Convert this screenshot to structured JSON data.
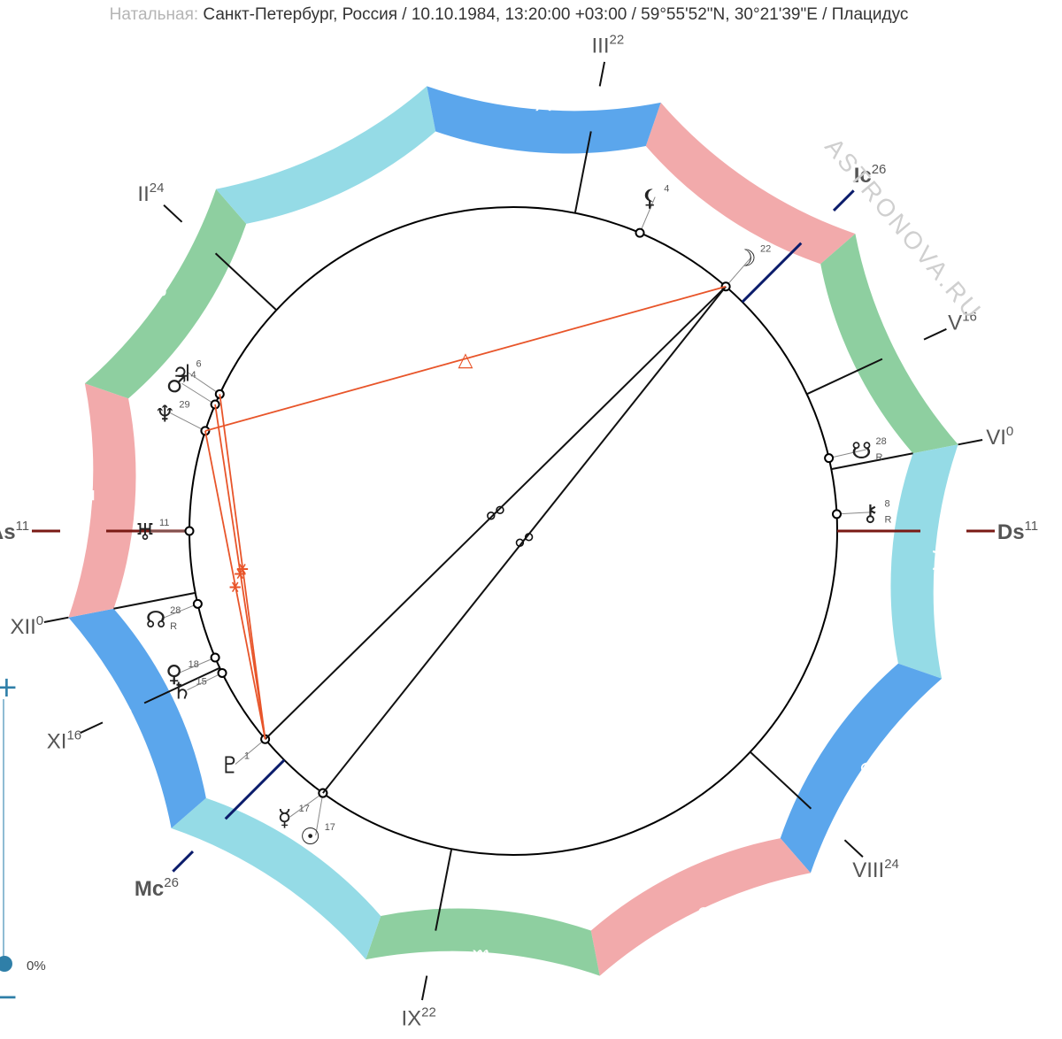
{
  "header": {
    "label": "Натальная:",
    "text": "Санкт-Петербург, Россия / 10.10.1984, 13:20:00 +03:00 / 59°55'52\"N, 30°21'39\"E / Плацидус"
  },
  "watermark": "ASTRONOVA.RU",
  "zoom": {
    "plus": "+",
    "minus": "−",
    "percent": "0%"
  },
  "colors": {
    "fire": "#f2aaab",
    "earth": "#8ecfa0",
    "air": "#95dbe6",
    "water": "#5ba6ec",
    "axis_asc": "#7a1a14",
    "axis_mc": "#0b1c6b",
    "aspect_red": "#e8552a",
    "aspect_black": "#111111"
  },
  "zodiac": [
    {
      "name": "aries",
      "glyph": "♈",
      "element": "fire"
    },
    {
      "name": "taurus",
      "glyph": "♉",
      "element": "earth"
    },
    {
      "name": "gemini",
      "glyph": "♊",
      "element": "air"
    },
    {
      "name": "cancer",
      "glyph": "♋",
      "element": "water"
    },
    {
      "name": "leo",
      "glyph": "♌",
      "element": "fire"
    },
    {
      "name": "virgo",
      "glyph": "♍",
      "element": "earth"
    },
    {
      "name": "libra",
      "glyph": "♎",
      "element": "air"
    },
    {
      "name": "scorpio",
      "glyph": "♏",
      "element": "water"
    },
    {
      "name": "sagittarius",
      "glyph": "♐",
      "element": "fire"
    },
    {
      "name": "capricorn",
      "glyph": "♑",
      "element": "earth"
    },
    {
      "name": "aquarius",
      "glyph": "♒",
      "element": "air"
    },
    {
      "name": "pisces",
      "glyph": "♓",
      "element": "water"
    }
  ],
  "axes": [
    {
      "name": "As",
      "deg": 11,
      "lon": 251
    },
    {
      "name": "Ds",
      "deg": 11,
      "lon": 71
    },
    {
      "name": "Mc",
      "deg": 26,
      "lon": 206
    },
    {
      "name": "Ic",
      "deg": 26,
      "lon": 26
    }
  ],
  "houses": [
    {
      "name": "II",
      "deg": 24,
      "lon": 294
    },
    {
      "name": "III",
      "deg": 22,
      "lon": 352
    },
    {
      "name": "V",
      "deg": 16,
      "lon": 46
    },
    {
      "name": "VI",
      "deg": 0,
      "lon": 60
    },
    {
      "name": "VIII",
      "deg": 24,
      "lon": 114
    },
    {
      "name": "IX",
      "deg": 22,
      "lon": 172
    },
    {
      "name": "XI",
      "deg": 16,
      "lon": 226
    },
    {
      "name": "XII",
      "deg": 0,
      "lon": 240
    }
  ],
  "planets": [
    {
      "name": "sun",
      "glyph": "☉",
      "deg": "17",
      "retro": "",
      "lon": 197
    },
    {
      "name": "mercury",
      "glyph": "☿",
      "deg": "17",
      "retro": "",
      "lon": 197
    },
    {
      "name": "pluto",
      "glyph": "♇",
      "deg": "1",
      "retro": "",
      "lon": 211
    },
    {
      "name": "saturn",
      "glyph": "♄",
      "deg": "15",
      "retro": "",
      "lon": 225
    },
    {
      "name": "venus",
      "glyph": "♀",
      "deg": "18",
      "retro": "",
      "lon": 228
    },
    {
      "name": "north-node",
      "glyph": "☊",
      "deg": "28",
      "retro": "R",
      "lon": 238
    },
    {
      "name": "uranus",
      "glyph": "♅",
      "deg": "11",
      "retro": "",
      "lon": 251
    },
    {
      "name": "neptune",
      "glyph": "♆",
      "deg": "29",
      "retro": "",
      "lon": 269
    },
    {
      "name": "mars",
      "glyph": "♂",
      "deg": "4",
      "retro": "",
      "lon": 274
    },
    {
      "name": "jupiter",
      "glyph": "♃",
      "deg": "6",
      "retro": "",
      "lon": 276
    },
    {
      "name": "chiron",
      "glyph": "⚷",
      "deg": "8",
      "retro": "R",
      "lon": 68
    },
    {
      "name": "south-node",
      "glyph": "☋",
      "deg": "28",
      "retro": "R",
      "lon": 58
    },
    {
      "name": "moon",
      "glyph": "☽",
      "deg": "22",
      "retro": "",
      "lon": 22
    },
    {
      "name": "lilith",
      "glyph": "⚸",
      "deg": "4",
      "retro": "",
      "lon": 4
    }
  ],
  "aspects": [
    {
      "from": "sun",
      "to": "moon",
      "type": "opposition",
      "glyph": "☍",
      "color": "black"
    },
    {
      "from": "pluto",
      "to": "moon",
      "type": "opposition",
      "glyph": "☍",
      "color": "black"
    },
    {
      "from": "pluto",
      "to": "neptune",
      "type": "sextile",
      "glyph": "⚹",
      "color": "red"
    },
    {
      "from": "pluto",
      "to": "mars",
      "type": "sextile",
      "glyph": "⚹",
      "color": "red"
    },
    {
      "from": "pluto",
      "to": "jupiter",
      "type": "sextile",
      "glyph": "⚹",
      "color": "red"
    },
    {
      "from": "neptune",
      "to": "moon",
      "type": "trine",
      "glyph": "△",
      "color": "red"
    }
  ]
}
